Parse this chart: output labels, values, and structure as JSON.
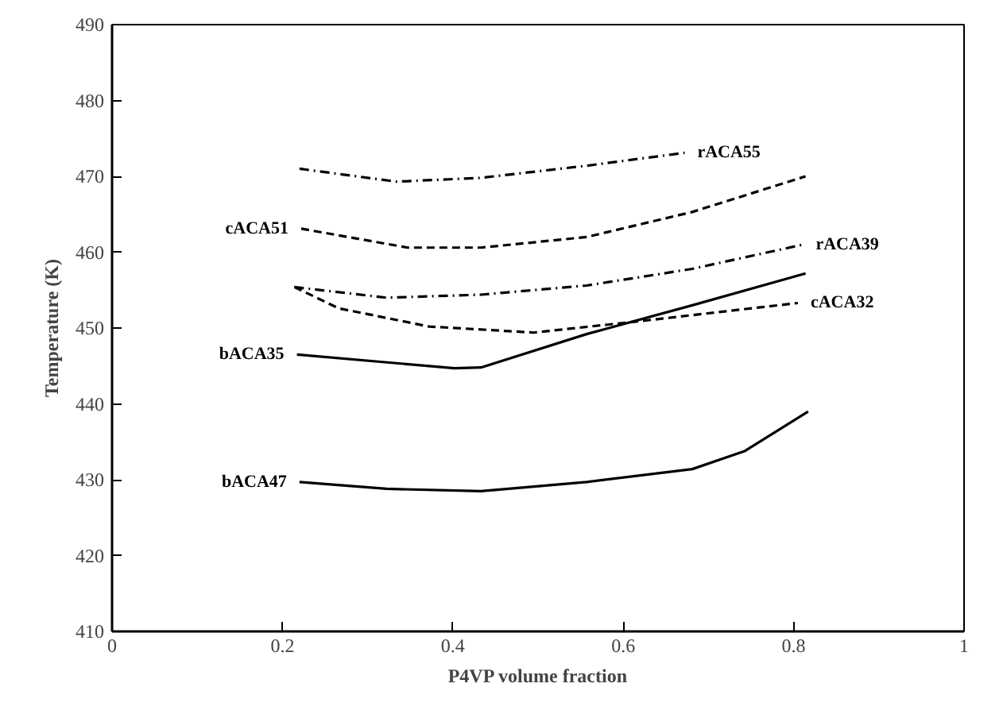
{
  "chart_data": {
    "type": "line",
    "xlabel": "P4VP volume fraction",
    "ylabel": "Temperature (K)",
    "xlim": [
      0,
      1
    ],
    "xticks": [
      0,
      0.2,
      0.4,
      0.6,
      0.8,
      1
    ],
    "ylim": [
      410,
      490
    ],
    "yticks": [
      410,
      420,
      430,
      440,
      450,
      460,
      470,
      480,
      490
    ],
    "grid": false,
    "series": [
      {
        "name": "rACA55",
        "color": "#000000",
        "line_style": "dashdot",
        "x": [
          0.22,
          0.334,
          0.433,
          0.557,
          0.672
        ],
        "values": [
          471.0,
          469.3,
          469.8,
          471.4,
          473.1
        ]
      },
      {
        "name": "cACA51",
        "color": "#000000",
        "line_style": "dashed",
        "x": [
          0.222,
          0.347,
          0.433,
          0.557,
          0.681,
          0.814
        ],
        "values": [
          463.1,
          460.6,
          460.6,
          462.0,
          465.3,
          470.0
        ]
      },
      {
        "name": "rACA39",
        "color": "#000000",
        "line_style": "dashdot",
        "x": [
          0.214,
          0.322,
          0.433,
          0.557,
          0.681,
          0.811
        ],
        "values": [
          455.4,
          454.0,
          454.4,
          455.6,
          457.8,
          461.0
        ]
      },
      {
        "name": "cACA32",
        "color": "#000000",
        "line_style": "dashed",
        "x": [
          0.214,
          0.266,
          0.372,
          0.495,
          0.619,
          0.805
        ],
        "values": [
          455.4,
          452.6,
          450.2,
          449.4,
          450.9,
          453.3
        ]
      },
      {
        "name": "bACA35",
        "color": "#000000",
        "line_style": "solid",
        "x": [
          0.217,
          0.402,
          0.433,
          0.557,
          0.681,
          0.814
        ],
        "values": [
          446.5,
          444.7,
          444.8,
          449.2,
          453.0,
          457.2
        ]
      },
      {
        "name": "bACA47",
        "color": "#000000",
        "line_style": "solid",
        "x": [
          0.22,
          0.322,
          0.433,
          0.557,
          0.681,
          0.743,
          0.817
        ],
        "values": [
          429.7,
          428.8,
          428.5,
          429.7,
          431.4,
          433.8,
          439.0
        ]
      }
    ]
  }
}
